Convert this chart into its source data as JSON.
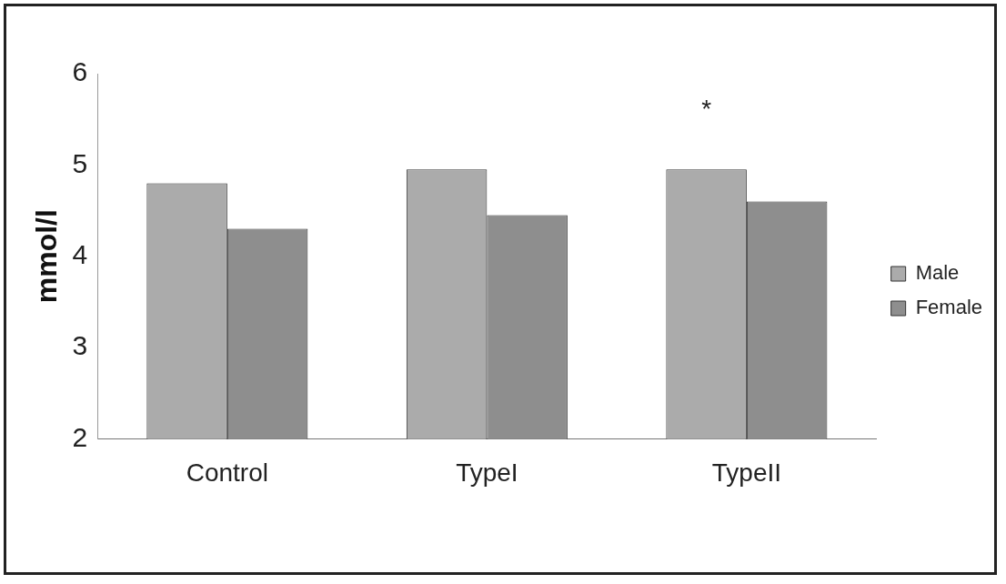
{
  "chart_data": {
    "type": "bar",
    "ylabel": "mmol/l",
    "categories": [
      "Control",
      "TypeI",
      "TypeII"
    ],
    "series": [
      {
        "name": "Male",
        "color": "#ababab",
        "values": [
          4.8,
          4.95,
          4.95
        ]
      },
      {
        "name": "Female",
        "color": "#8e8e8e",
        "values": [
          4.3,
          4.45,
          4.6
        ]
      }
    ],
    "ylim": [
      2,
      6
    ],
    "yticks": [
      2,
      3,
      4,
      5,
      6
    ],
    "grid": false,
    "legend": "right",
    "annotations": [
      "*"
    ]
  }
}
